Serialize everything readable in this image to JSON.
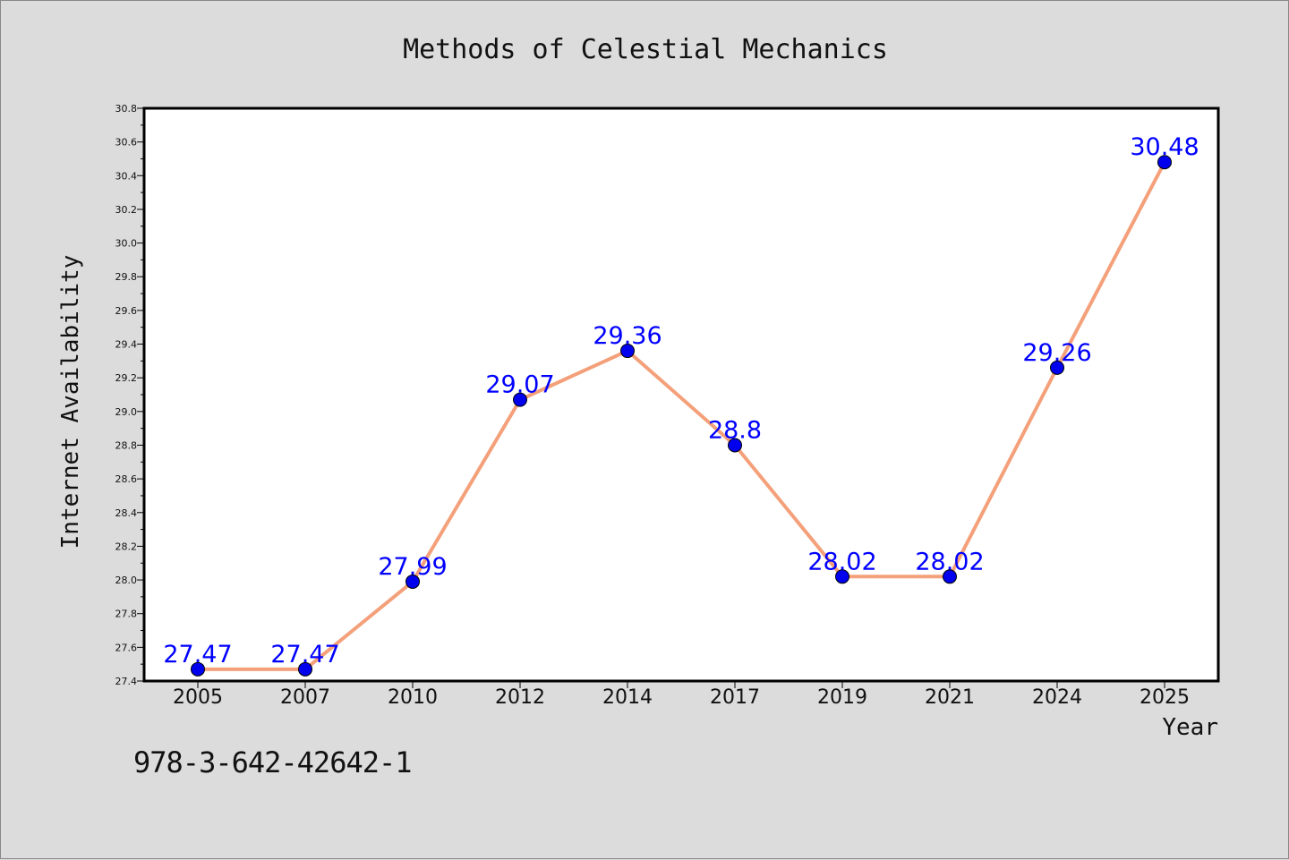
{
  "chart_data": {
    "type": "line",
    "title": "Methods of Celestial Mechanics",
    "xlabel": "Year",
    "ylabel": "Internet Availability",
    "categories": [
      "2005",
      "2007",
      "2010",
      "2012",
      "2014",
      "2017",
      "2019",
      "2021",
      "2024",
      "2025"
    ],
    "series": [
      {
        "values": [
          27.47,
          27.47,
          27.99,
          29.07,
          29.36,
          28.8,
          28.02,
          28.02,
          29.26,
          30.48
        ],
        "data_labels": [
          "27.47",
          "27.47",
          "27.99",
          "29.07",
          "29.36",
          "28.8",
          "28.02",
          "28.02",
          "29.26",
          "30.48"
        ],
        "line_color": "#f4a07a",
        "marker_color": "#0000ee"
      }
    ],
    "ylim": [
      27.4,
      30.8
    ],
    "yticks": [
      "27.4",
      "27.6",
      "27.8",
      "28.0",
      "28.2",
      "28.4",
      "28.6",
      "28.8",
      "29.0",
      "29.2",
      "29.4",
      "29.6",
      "29.8",
      "30.0",
      "30.2",
      "30.4",
      "30.6",
      "30.8"
    ],
    "grid": false,
    "legend": "none",
    "label_color": "#0000ff",
    "plot_background": "#ffffff",
    "page_background": "#dcdcdc"
  },
  "footer": {
    "isbn": "978-3-642-42642-1"
  }
}
